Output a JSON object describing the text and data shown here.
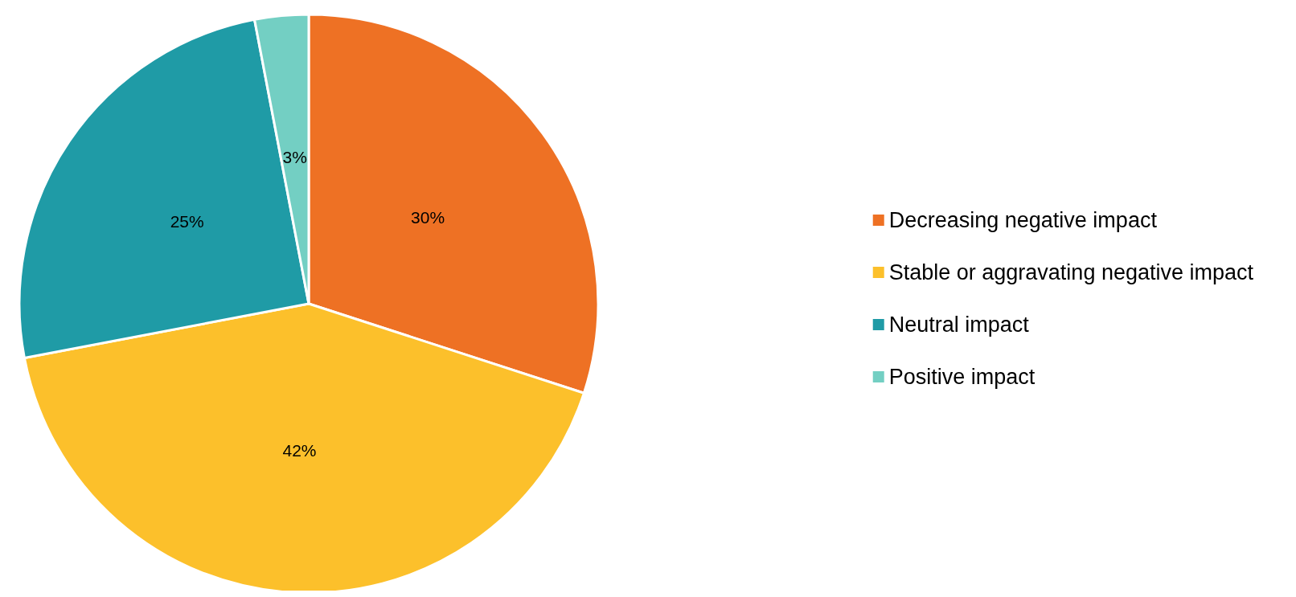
{
  "chart_data": {
    "type": "pie",
    "categories": [
      "Decreasing negative impact",
      "Stable or aggravating negative impact",
      "Neutral impact",
      "Positive impact"
    ],
    "values": [
      30,
      42,
      25,
      3
    ],
    "colors": [
      "#ee7124",
      "#fcc02b",
      "#1f9ba6",
      "#73cfc3"
    ],
    "value_labels": [
      "30%",
      "42%",
      "25%",
      "3%"
    ],
    "legend": "right"
  }
}
